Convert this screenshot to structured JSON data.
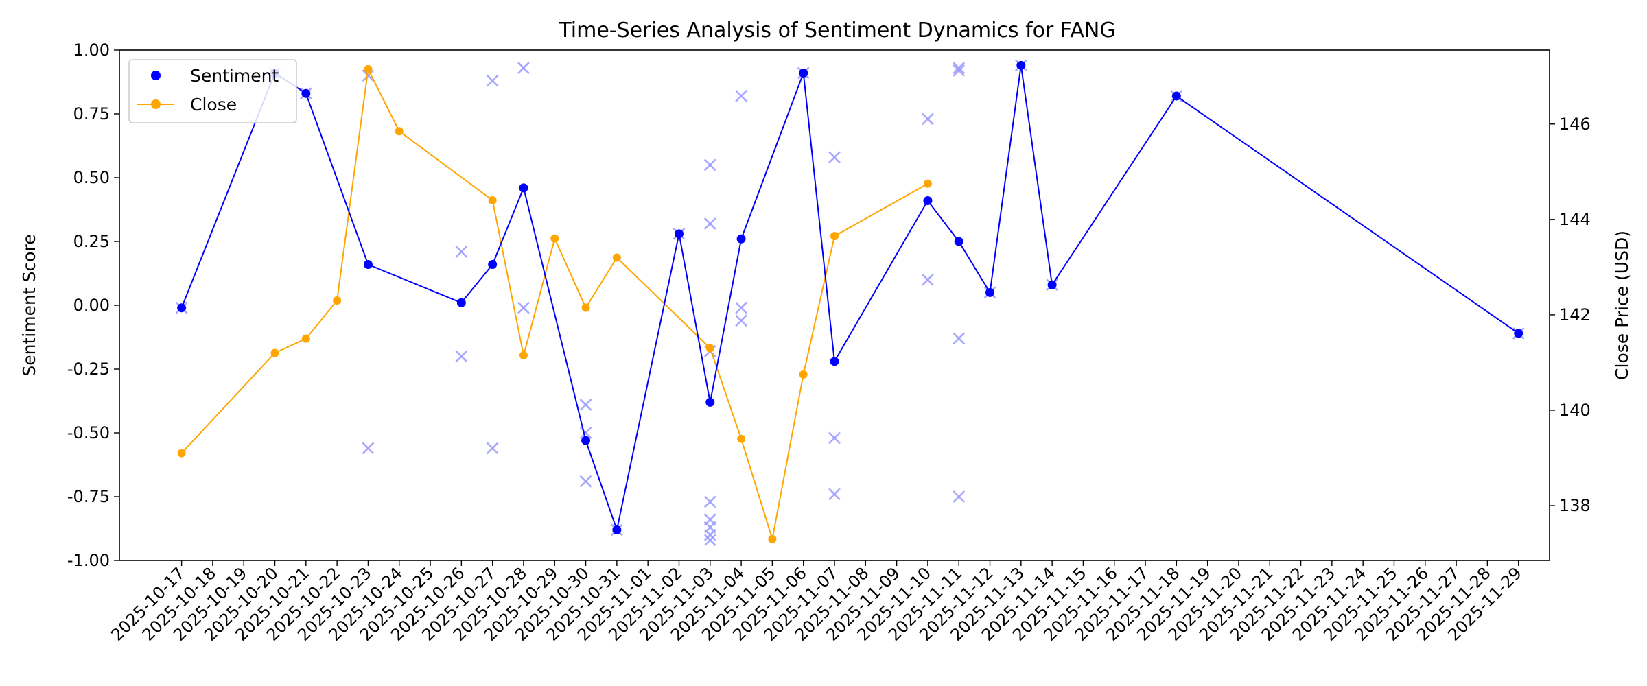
{
  "chart_data": {
    "type": "line",
    "title": "Time-Series Analysis of Sentiment Dynamics for FANG",
    "xlabel": "",
    "ylabel_left": "Sentiment Score",
    "ylabel_right": "Close Price (USD)",
    "x_ticks": [
      "2025-10-17",
      "2025-10-18",
      "2025-10-19",
      "2025-10-20",
      "2025-10-21",
      "2025-10-22",
      "2025-10-23",
      "2025-10-24",
      "2025-10-25",
      "2025-10-26",
      "2025-10-27",
      "2025-10-28",
      "2025-10-29",
      "2025-10-30",
      "2025-10-31",
      "2025-11-01",
      "2025-11-02",
      "2025-11-03",
      "2025-11-04",
      "2025-11-05",
      "2025-11-06",
      "2025-11-07",
      "2025-11-08",
      "2025-11-09",
      "2025-11-10",
      "2025-11-11",
      "2025-11-12",
      "2025-11-13",
      "2025-11-14",
      "2025-11-15",
      "2025-11-16",
      "2025-11-17",
      "2025-11-18",
      "2025-11-19",
      "2025-11-20",
      "2025-11-21",
      "2025-11-22",
      "2025-11-23",
      "2025-11-24",
      "2025-11-25",
      "2025-11-26",
      "2025-11-27",
      "2025-11-28",
      "2025-11-29"
    ],
    "xlim": [
      "2025-10-15",
      "2025-11-30"
    ],
    "ylim_left": [
      -1.0,
      1.0
    ],
    "yticks_left": [
      "-1.00",
      "-0.75",
      "-0.50",
      "-0.25",
      "0.00",
      "0.25",
      "0.50",
      "0.75",
      "1.00"
    ],
    "ylim_right": [
      136.85,
      147.55
    ],
    "yticks_right": [
      "138",
      "140",
      "142",
      "144",
      "146"
    ],
    "legend": {
      "placement": "top-left",
      "entries": [
        "Sentiment",
        "Close"
      ]
    },
    "grid": false,
    "colors": {
      "sentiment": "#0000ff",
      "close": "#ffa500",
      "raw": "#9999ff"
    },
    "series": [
      {
        "name": "Sentiment",
        "axis": "left",
        "x": [
          "2025-10-17",
          "2025-10-20",
          "2025-10-21",
          "2025-10-23",
          "2025-10-26",
          "2025-10-27",
          "2025-10-28",
          "2025-10-30",
          "2025-10-31",
          "2025-11-02",
          "2025-11-03",
          "2025-11-04",
          "2025-11-06",
          "2025-11-07",
          "2025-11-10",
          "2025-11-11",
          "2025-11-12",
          "2025-11-13",
          "2025-11-14",
          "2025-11-18",
          "2025-11-29"
        ],
        "y": [
          -0.01,
          0.91,
          0.83,
          0.16,
          0.01,
          0.16,
          0.46,
          -0.53,
          -0.88,
          0.28,
          -0.38,
          0.26,
          0.91,
          -0.22,
          0.41,
          0.25,
          0.05,
          0.94,
          0.08,
          0.82,
          -0.11
        ]
      },
      {
        "name": "Close",
        "axis": "right",
        "x": [
          "2025-10-17",
          "2025-10-20",
          "2025-10-21",
          "2025-10-22",
          "2025-10-23",
          "2025-10-24",
          "2025-10-27",
          "2025-10-28",
          "2025-10-29",
          "2025-10-30",
          "2025-10-31",
          "2025-11-03",
          "2025-11-04",
          "2025-11-05",
          "2025-11-06",
          "2025-11-07",
          "2025-11-10"
        ],
        "y": [
          139.1,
          141.2,
          141.5,
          142.3,
          147.15,
          145.85,
          144.4,
          141.15,
          143.6,
          142.15,
          143.2,
          141.3,
          139.4,
          137.3,
          140.75,
          143.65,
          144.75
        ]
      },
      {
        "name": "",
        "kind": "raw-scatter",
        "axis": "left",
        "x": [
          "2025-10-17",
          "2025-10-20",
          "2025-10-21",
          "2025-10-23",
          "2025-10-23",
          "2025-10-26",
          "2025-10-26",
          "2025-10-27",
          "2025-10-27",
          "2025-10-28",
          "2025-10-28",
          "2025-10-30",
          "2025-10-30",
          "2025-10-30",
          "2025-10-31",
          "2025-11-02",
          "2025-11-03",
          "2025-11-03",
          "2025-11-03",
          "2025-11-03",
          "2025-11-03",
          "2025-11-03",
          "2025-11-03",
          "2025-11-03",
          "2025-11-04",
          "2025-11-04",
          "2025-11-04",
          "2025-11-06",
          "2025-11-07",
          "2025-11-07",
          "2025-11-07",
          "2025-11-10",
          "2025-11-10",
          "2025-11-11",
          "2025-11-11",
          "2025-11-11",
          "2025-11-11",
          "2025-11-12",
          "2025-11-13",
          "2025-11-14",
          "2025-11-18",
          "2025-11-29"
        ],
        "y": [
          -0.01,
          0.91,
          0.83,
          0.9,
          -0.56,
          0.21,
          -0.2,
          0.88,
          -0.56,
          0.93,
          -0.01,
          -0.39,
          -0.5,
          -0.69,
          -0.88,
          0.28,
          0.55,
          0.32,
          -0.18,
          -0.77,
          -0.84,
          -0.87,
          -0.9,
          -0.92,
          0.82,
          -0.01,
          -0.06,
          0.91,
          0.58,
          -0.52,
          -0.74,
          0.73,
          0.1,
          0.93,
          0.92,
          -0.13,
          -0.75,
          0.05,
          0.94,
          0.08,
          0.82,
          -0.11
        ]
      }
    ]
  }
}
